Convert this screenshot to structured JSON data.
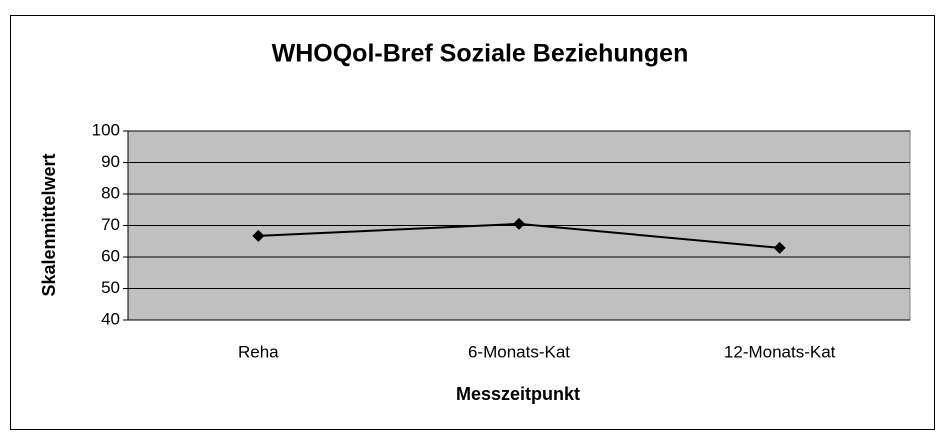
{
  "chart_data": {
    "type": "line",
    "title": "WHOQol-Bref Soziale Beziehungen",
    "categories": [
      "Reha",
      "6-Monats-Kat",
      "12-Monats-Kat"
    ],
    "series": [
      {
        "name": "Skalenmittelwert",
        "color": "#000000",
        "values": [
          66.7,
          70.5,
          62.9
        ]
      }
    ],
    "ylim": [
      40,
      100
    ],
    "yticks": [
      40,
      50,
      60,
      70,
      80,
      90,
      100
    ],
    "grid": true,
    "xlabel": "Messzeitpunkt",
    "ylabel": "Skalenmittelwert"
  }
}
